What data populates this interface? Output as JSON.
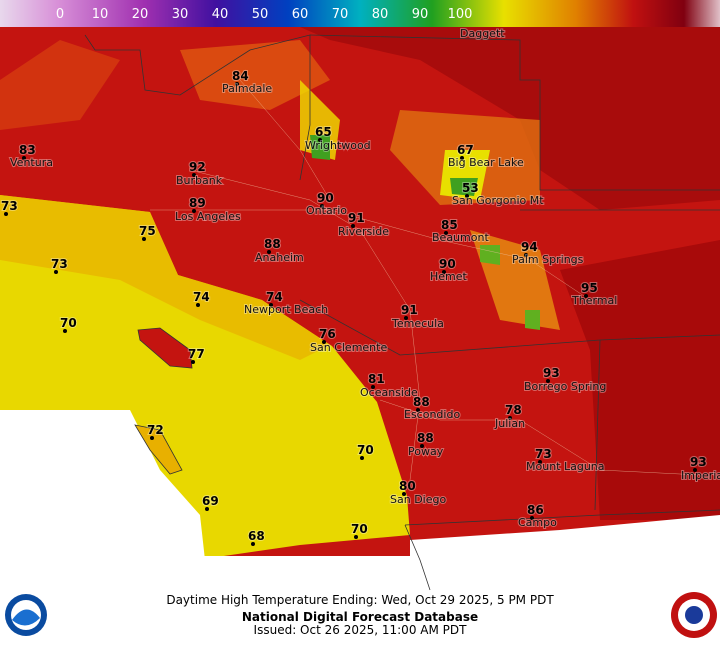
{
  "color_scale": {
    "ticks": [
      0,
      10,
      20,
      30,
      40,
      50,
      60,
      70,
      80,
      90,
      100
    ]
  },
  "stations": [
    {
      "name": "Palmdale",
      "temp": 84
    },
    {
      "name": "Wrightwood",
      "temp": 65
    },
    {
      "name": "Big Bear Lake",
      "temp": 67
    },
    {
      "name": "San Gorgonio Mt",
      "temp": 53
    },
    {
      "name": "Ventura",
      "temp": 83
    },
    {
      "name": "Burbank",
      "temp": 92
    },
    {
      "name": "Los Angeles",
      "temp": 89
    },
    {
      "name": "Ontario",
      "temp": 90
    },
    {
      "name": "Riverside",
      "temp": 91
    },
    {
      "name": "Beaumont",
      "temp": 85
    },
    {
      "name": "Palm Springs",
      "temp": 94
    },
    {
      "name": "Anaheim",
      "temp": 88
    },
    {
      "name": "Hemet",
      "temp": 90
    },
    {
      "name": "Thermal",
      "temp": 95
    },
    {
      "temp": 73
    },
    {
      "temp": 75
    },
    {
      "temp": 73
    },
    {
      "temp": 74
    },
    {
      "name": "Newport Beach",
      "temp": 74
    },
    {
      "temp": 70
    },
    {
      "name": "Temecula",
      "temp": 91
    },
    {
      "name": "San Clemente",
      "temp": 76
    },
    {
      "temp": 77
    },
    {
      "name": "Oceanside",
      "temp": 81
    },
    {
      "name": "Borrego Spring",
      "temp": 93
    },
    {
      "temp": 72
    },
    {
      "name": "Escondido",
      "temp": 88
    },
    {
      "name": "Julian",
      "temp": 78
    },
    {
      "name": "Poway",
      "temp": 88
    },
    {
      "temp": 70
    },
    {
      "name": "Mount Laguna",
      "temp": 73
    },
    {
      "name": "Imperial",
      "temp": 93
    },
    {
      "name": "San Diego",
      "temp": 80
    },
    {
      "temp": 69
    },
    {
      "name": "Campo",
      "temp": 86
    },
    {
      "temp": 70
    },
    {
      "temp": 68
    },
    {
      "name": "Daggett"
    }
  ],
  "footer": {
    "title": "Daytime High Temperature Ending: Wed, Oct 29 2025, 5 PM PDT",
    "source": "National Digital Forecast Database",
    "issued": "Issued: Oct 26 2025, 11:00 AM PDT"
  }
}
